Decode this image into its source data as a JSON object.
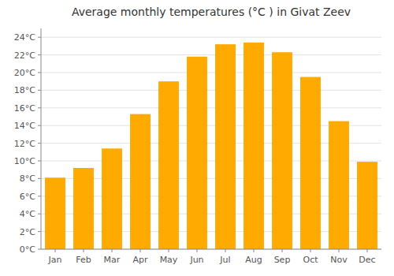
{
  "chart_data": {
    "type": "bar",
    "title": "Average monthly temperatures (°C ) in Givat Zeev",
    "categories": [
      "Jan",
      "Feb",
      "Mar",
      "Apr",
      "May",
      "Jun",
      "Jul",
      "Aug",
      "Sep",
      "Oct",
      "Nov",
      "Dec"
    ],
    "values": [
      8.1,
      9.2,
      11.4,
      15.3,
      19.0,
      21.8,
      23.2,
      23.4,
      22.3,
      19.5,
      14.5,
      9.9
    ],
    "color": "#FFAA00",
    "ylim": [
      0,
      25
    ],
    "yticks": [
      {
        "value": 0,
        "label": "0°C"
      },
      {
        "value": 2,
        "label": "2°C"
      },
      {
        "value": 4,
        "label": "4°C"
      },
      {
        "value": 6,
        "label": "6°C"
      },
      {
        "value": 8,
        "label": "8°C"
      },
      {
        "value": 10,
        "label": "10°C"
      },
      {
        "value": 12,
        "label": "12°C"
      },
      {
        "value": 14,
        "label": "14°C"
      },
      {
        "value": 16,
        "label": "16°C"
      },
      {
        "value": 18,
        "label": "18°C"
      },
      {
        "value": 20,
        "label": "20°C"
      },
      {
        "value": 22,
        "label": "22°C"
      },
      {
        "value": 24,
        "label": "24°C"
      }
    ],
    "grid": true
  }
}
